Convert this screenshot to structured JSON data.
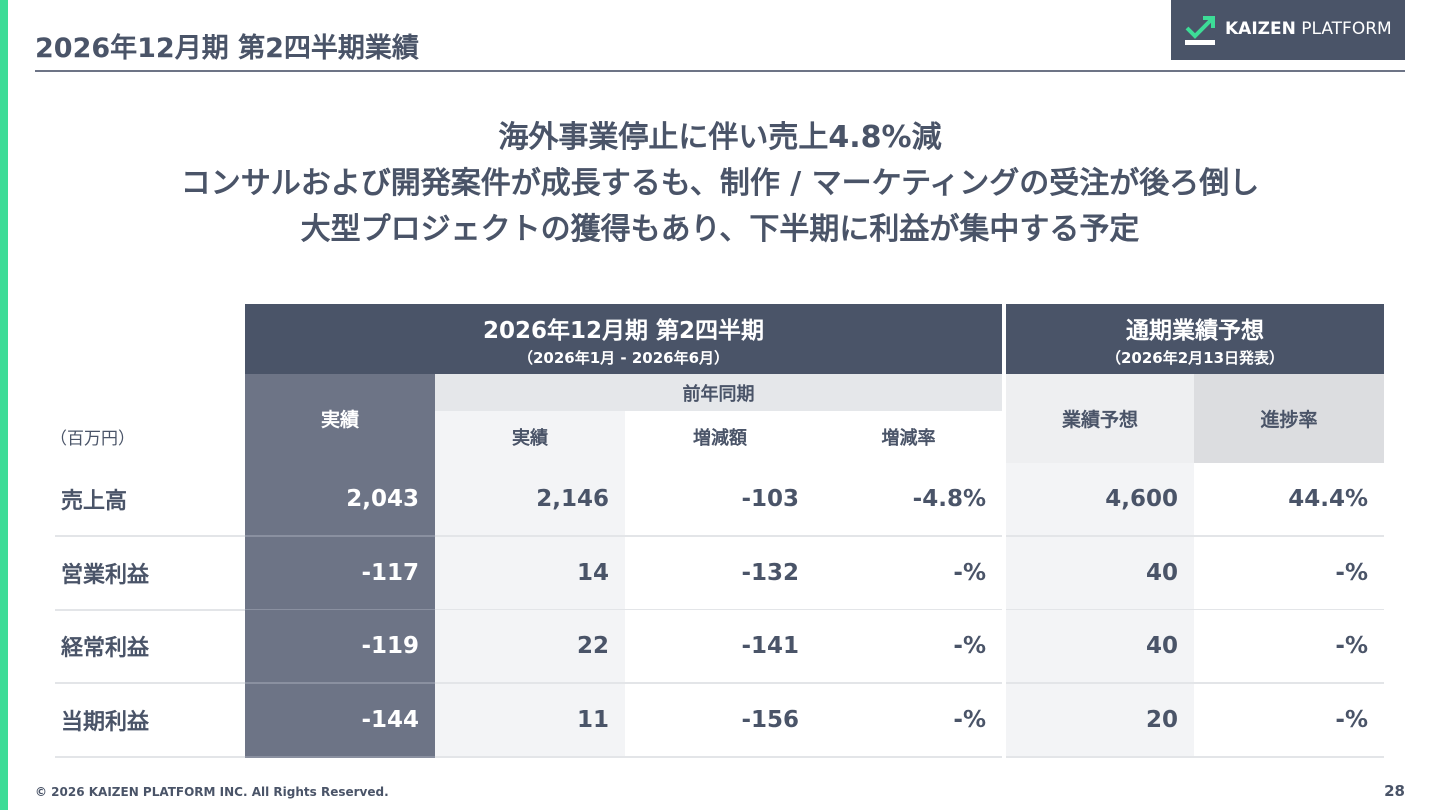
{
  "header": {
    "title": "2026年12月期 第2四半期業績",
    "logo": {
      "bold": "KAIZEN",
      "light": "PLATFORM"
    }
  },
  "headline": [
    "海外事業停止に伴い売上4.8%減",
    "コンサルおよび開発案件が成長するも、制作 / マーケティングの受注が後ろ倒し",
    "大型プロジェクトの獲得もあり、下半期に利益が集中する予定"
  ],
  "table": {
    "unit": "（百万円）",
    "groups": [
      {
        "title": "2026年12月期 第2四半期",
        "period": "（2026年1月 - 2026年6月）"
      },
      {
        "title": "通期業績予想",
        "period": "（2026年2月13日発表）"
      }
    ],
    "columns": {
      "actual": "実績",
      "prior_group": "前年同期",
      "prior_actual": "実績",
      "change": "増減額",
      "change_rate": "増減率",
      "forecast": "業績予想",
      "progress": "進捗率"
    },
    "rows": [
      {
        "label": "売上高",
        "cells": [
          "2,043",
          "2,146",
          "-103",
          "-4.8%",
          "4,600",
          "44.4%"
        ]
      },
      {
        "label": "営業利益",
        "cells": [
          "-117",
          "14",
          "-132",
          "-%",
          "40",
          "-%"
        ]
      },
      {
        "label": "経常利益",
        "cells": [
          "-119",
          "22",
          "-141",
          "-%",
          "40",
          "-%"
        ]
      },
      {
        "label": "当期利益",
        "cells": [
          "-144",
          "11",
          "-156",
          "-%",
          "20",
          "-%"
        ]
      }
    ]
  },
  "footer": {
    "copyright": "© 2026 KAIZEN PLATFORM INC. All Rights Reserved.",
    "page": "28"
  }
}
